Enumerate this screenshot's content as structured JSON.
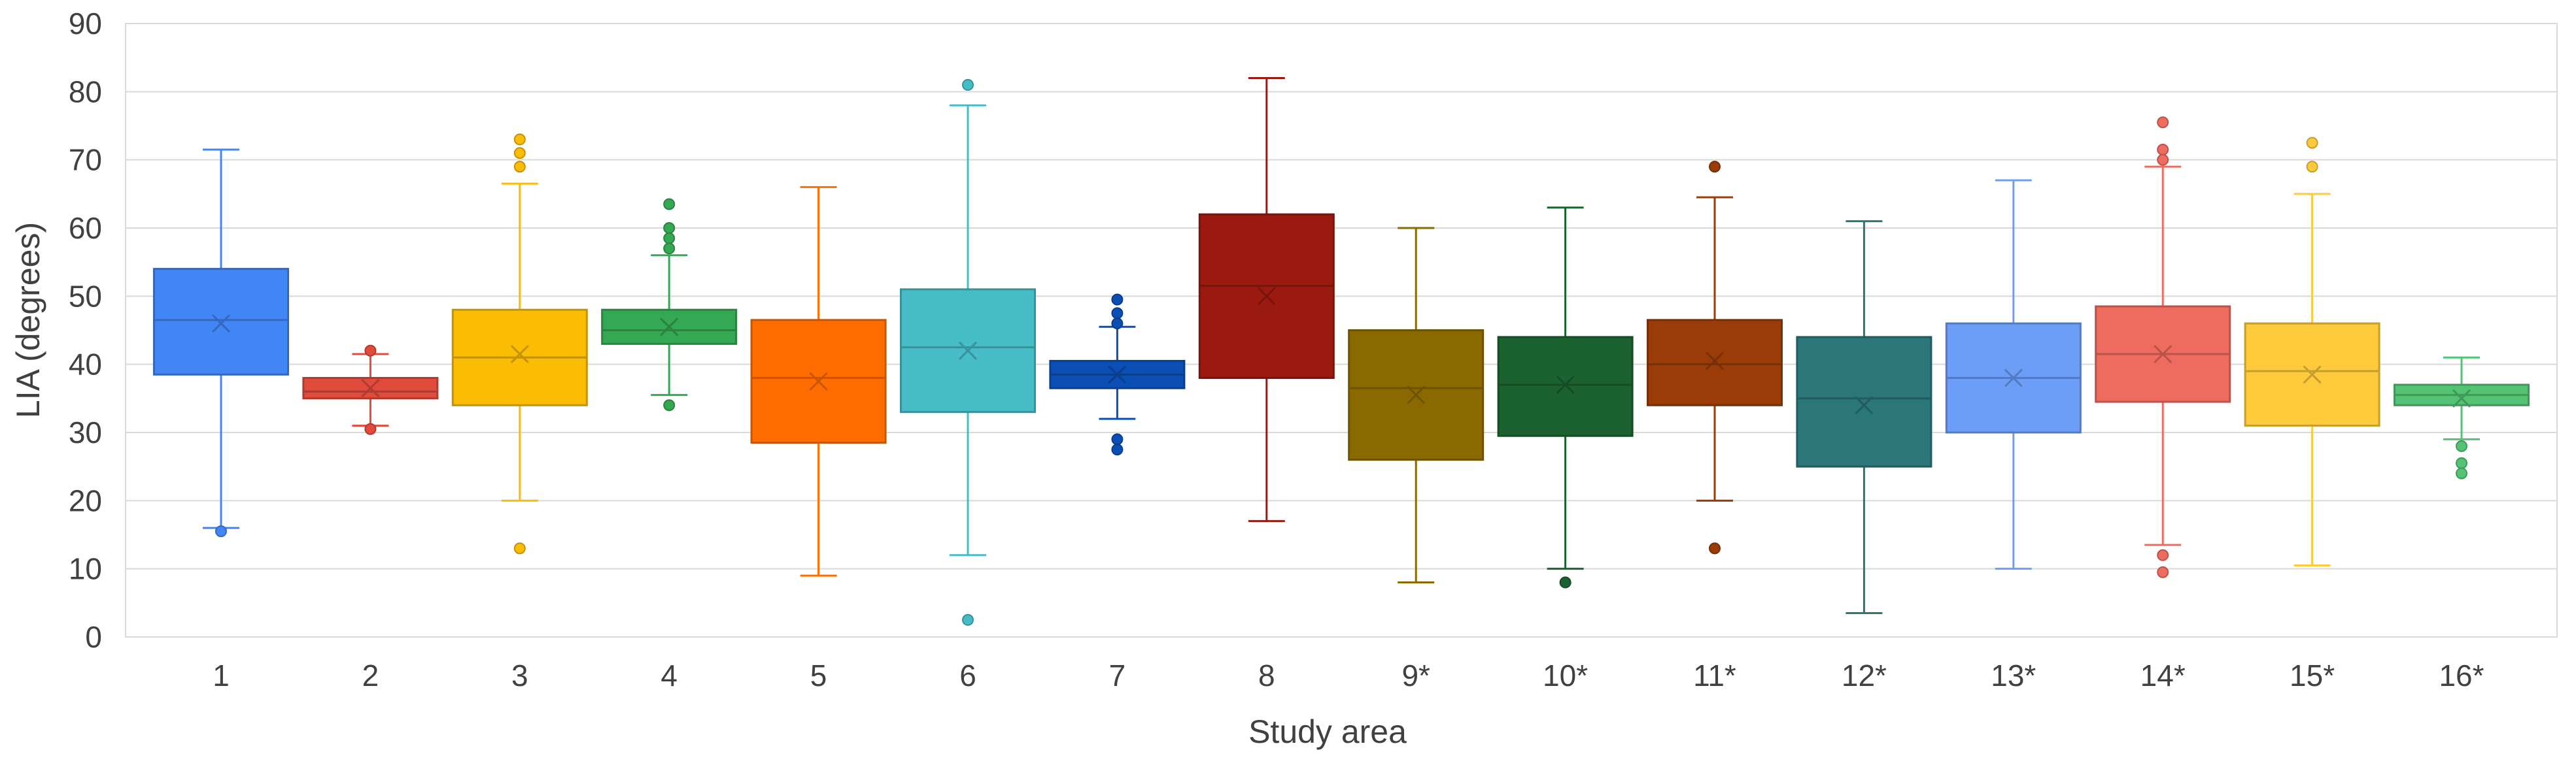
{
  "chart_data": {
    "type": "box",
    "xlabel": "Study area",
    "ylabel": "LIA (degrees)",
    "ylim": [
      0,
      90
    ],
    "yticks": [
      0,
      10,
      20,
      30,
      40,
      50,
      60,
      70,
      80,
      90
    ],
    "grid": true,
    "categories": [
      "1",
      "2",
      "3",
      "4",
      "5",
      "6",
      "7",
      "8",
      "9*",
      "10*",
      "11*",
      "12*",
      "13*",
      "14*",
      "15*",
      "16*"
    ],
    "colors": [
      "#4285f4",
      "#e04b3c",
      "#fbbc04",
      "#34a853",
      "#ff6d01",
      "#46bdc6",
      "#0b4fb4",
      "#9a1a10",
      "#8a6a00",
      "#1c6230",
      "#9a3c08",
      "#2a7678",
      "#6c9ef8",
      "#ee6b5f",
      "#fcca3a",
      "#55c374"
    ],
    "boxes": [
      {
        "category": "1",
        "min": 16,
        "q1": 38.5,
        "median": 46.5,
        "q3": 54,
        "max": 71.5,
        "mean": 46,
        "outliers": [
          15.5
        ]
      },
      {
        "category": "2",
        "min": 31,
        "q1": 35,
        "median": 36,
        "q3": 38,
        "max": 41.5,
        "mean": 36.5,
        "outliers": [
          42,
          30.5
        ]
      },
      {
        "category": "3",
        "min": 20,
        "q1": 34,
        "median": 41,
        "q3": 48,
        "max": 66.5,
        "mean": 41.5,
        "outliers": [
          73,
          71,
          69,
          13
        ]
      },
      {
        "category": "4",
        "min": 35.5,
        "q1": 43,
        "median": 45,
        "q3": 48,
        "max": 56,
        "mean": 45.5,
        "outliers": [
          63.5,
          60,
          58.5,
          57,
          34
        ]
      },
      {
        "category": "5",
        "min": 9,
        "q1": 28.5,
        "median": 38,
        "q3": 46.5,
        "max": 66,
        "mean": 37.5,
        "outliers": []
      },
      {
        "category": "6",
        "min": 12,
        "q1": 33,
        "median": 42.5,
        "q3": 51,
        "max": 78,
        "mean": 42,
        "outliers": [
          81,
          2.5
        ]
      },
      {
        "category": "7",
        "min": 32,
        "q1": 36.5,
        "median": 38.5,
        "q3": 40.5,
        "max": 45.5,
        "mean": 38.5,
        "outliers": [
          49.5,
          47.5,
          46,
          29,
          27.5
        ]
      },
      {
        "category": "8",
        "min": 17,
        "q1": 38,
        "median": 51.5,
        "q3": 62,
        "max": 82,
        "mean": 50,
        "outliers": []
      },
      {
        "category": "9*",
        "min": 8,
        "q1": 26,
        "median": 36.5,
        "q3": 45,
        "max": 60,
        "mean": 35.5,
        "outliers": []
      },
      {
        "category": "10*",
        "min": 10,
        "q1": 29.5,
        "median": 37,
        "q3": 44,
        "max": 63,
        "mean": 37,
        "outliers": [
          8
        ]
      },
      {
        "category": "11*",
        "min": 20,
        "q1": 34,
        "median": 40,
        "q3": 46.5,
        "max": 64.5,
        "mean": 40.5,
        "outliers": [
          69,
          13
        ]
      },
      {
        "category": "12*",
        "min": 3.5,
        "q1": 25,
        "median": 35,
        "q3": 44,
        "max": 61,
        "mean": 34,
        "outliers": []
      },
      {
        "category": "13*",
        "min": 10,
        "q1": 30,
        "median": 38,
        "q3": 46,
        "max": 67,
        "mean": 38,
        "outliers": []
      },
      {
        "category": "14*",
        "min": 13.5,
        "q1": 34.5,
        "median": 41.5,
        "q3": 48.5,
        "max": 69,
        "mean": 41.5,
        "outliers": [
          75.5,
          71.5,
          70,
          12,
          9.5
        ]
      },
      {
        "category": "15*",
        "min": 10.5,
        "q1": 31,
        "median": 39,
        "q3": 46,
        "max": 65,
        "mean": 38.5,
        "outliers": [
          72.5,
          69
        ]
      },
      {
        "category": "16*",
        "min": 29,
        "q1": 34,
        "median": 35.5,
        "q3": 37,
        "max": 41,
        "mean": 35,
        "outliers": [
          28,
          25.5,
          24
        ]
      }
    ]
  }
}
